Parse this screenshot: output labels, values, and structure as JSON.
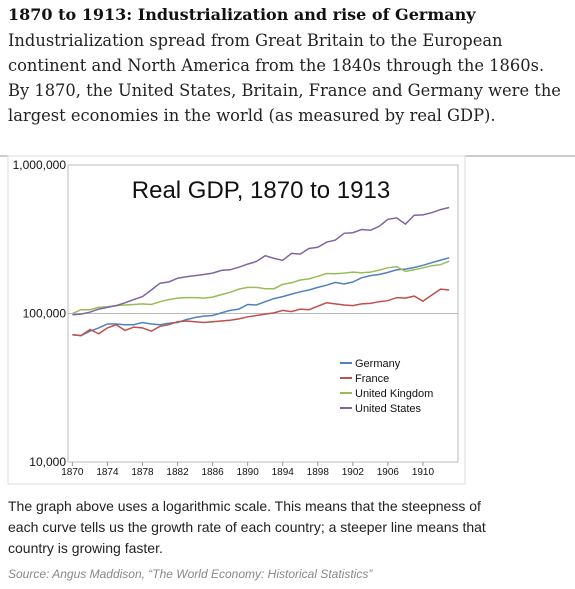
{
  "header": {
    "title": "1870 to 1913: Industrialization and rise of Germany",
    "intro": [
      "Industrialization spread from Great Britain to the European",
      "continent and North America from the 1840s through the 1860s.",
      "By 1870, the United States, Britain, France and Germany were the",
      "largest economies in the world (as measured by real GDP)."
    ]
  },
  "chart_data": {
    "type": "line",
    "title": "Real GDP, 1870 to 1913",
    "x": [
      1870,
      1871,
      1872,
      1873,
      1874,
      1875,
      1876,
      1877,
      1878,
      1879,
      1880,
      1881,
      1882,
      1883,
      1884,
      1885,
      1886,
      1887,
      1888,
      1889,
      1890,
      1891,
      1892,
      1893,
      1894,
      1895,
      1896,
      1897,
      1898,
      1899,
      1900,
      1901,
      1902,
      1903,
      1904,
      1905,
      1906,
      1907,
      1908,
      1909,
      1910,
      1911,
      1912,
      1913
    ],
    "xlim": [
      1869.5,
      1914
    ],
    "xticks": [
      1870,
      1874,
      1878,
      1882,
      1886,
      1890,
      1894,
      1898,
      1902,
      1906,
      1910
    ],
    "ylim": [
      10000,
      1000000
    ],
    "yscale": "log",
    "yticks": [
      {
        "value": 10000,
        "label": "10,000"
      },
      {
        "value": 100000,
        "label": "100,000"
      },
      {
        "value": 1000000,
        "label": "1,000,000"
      }
    ],
    "grid": true,
    "legend": "right",
    "series": [
      {
        "name": "Germany",
        "color": "#4f81bd",
        "values": [
          72000,
          71000,
          76000,
          80000,
          85000,
          85000,
          84000,
          84000,
          87000,
          85000,
          84000,
          86000,
          87000,
          91000,
          94000,
          96000,
          97000,
          101000,
          105000,
          107000,
          115000,
          114000,
          120000,
          126000,
          130000,
          135000,
          140000,
          144000,
          150000,
          155000,
          162000,
          158000,
          163000,
          174000,
          180000,
          183000,
          189000,
          197000,
          199000,
          204000,
          211000,
          220000,
          229000,
          237000
        ]
      },
      {
        "name": "France",
        "color": "#c0504d",
        "values": [
          72000,
          71000,
          78000,
          73000,
          80000,
          84000,
          77000,
          81000,
          80000,
          76000,
          82000,
          84000,
          88000,
          89000,
          88000,
          87000,
          88000,
          89000,
          90000,
          92000,
          95000,
          97000,
          99000,
          101000,
          105000,
          103000,
          107000,
          106000,
          112000,
          118000,
          116000,
          114000,
          113000,
          116000,
          117000,
          120000,
          122000,
          128000,
          127000,
          131000,
          121000,
          133000,
          146000,
          144000
        ]
      },
      {
        "name": "United Kingdom",
        "color": "#9bbb59",
        "values": [
          100000,
          106000,
          106000,
          110000,
          111000,
          113000,
          114000,
          115000,
          116000,
          115000,
          120000,
          124000,
          127000,
          128000,
          128000,
          127000,
          129000,
          134000,
          139000,
          146000,
          150000,
          150000,
          147000,
          147000,
          157000,
          161000,
          168000,
          171000,
          178000,
          186000,
          185000,
          187000,
          190000,
          188000,
          190000,
          196000,
          203000,
          207000,
          192000,
          197000,
          203000,
          210000,
          213000,
          225000
        ]
      },
      {
        "name": "United States",
        "color": "#8064a2",
        "values": [
          98000,
          99000,
          102000,
          107000,
          110000,
          113000,
          118000,
          124000,
          130000,
          144000,
          160000,
          163000,
          173000,
          177000,
          180000,
          183000,
          187000,
          195000,
          197000,
          205000,
          215000,
          224000,
          245000,
          235000,
          228000,
          254000,
          251000,
          274000,
          279000,
          302000,
          312000,
          347000,
          350000,
          368000,
          364000,
          386000,
          431000,
          440000,
          400000,
          459000,
          461000,
          477000,
          501000,
          517000
        ]
      }
    ]
  },
  "footer": {
    "caption": [
      "The graph above uses a logarithmic scale. This means that the steepness of",
      "each curve tells us the growth rate of each country; a steeper line means that",
      "country is growing faster."
    ],
    "source": "Source: Angus Maddison, “The World Economy: Historical Statistics”"
  }
}
